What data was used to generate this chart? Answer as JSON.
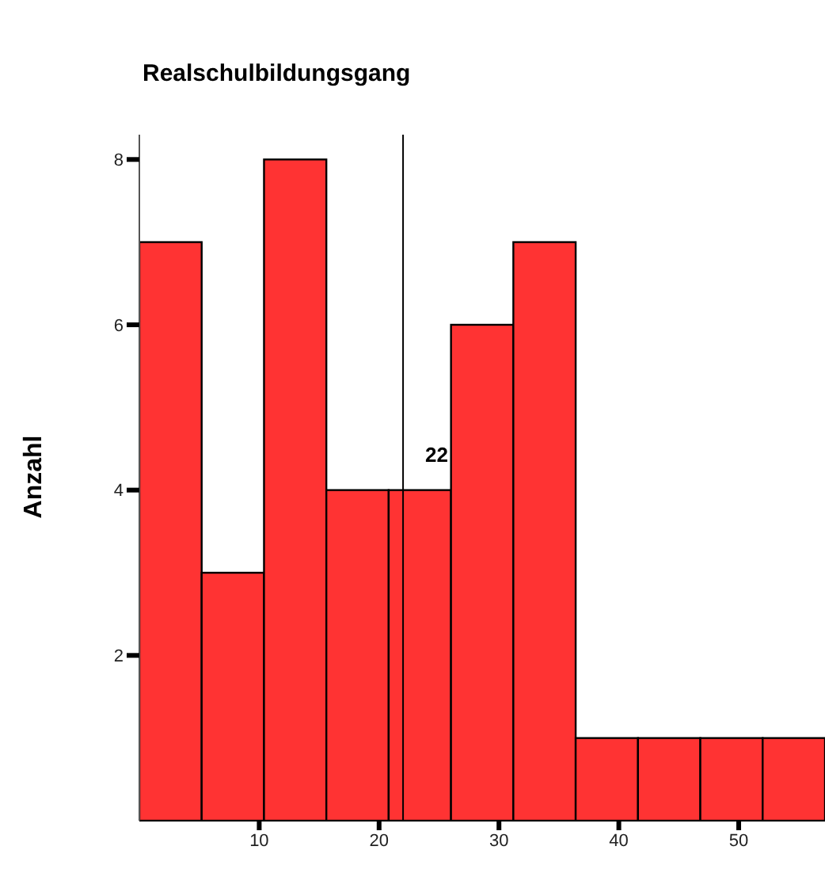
{
  "chart_data": {
    "type": "histogram",
    "title": "Realschulbildungsgang",
    "ylabel": "Anzahl",
    "bins": [
      0,
      5.2,
      10.4,
      15.6,
      20.8,
      26,
      31.2,
      36.4,
      41.6,
      46.8,
      52,
      57.2
    ],
    "values": [
      7,
      3,
      8,
      4,
      4,
      6,
      7,
      1,
      1,
      1,
      1
    ],
    "color": "#ff3333",
    "xlim": [
      0,
      57.2
    ],
    "xticks": [
      10,
      20,
      30,
      40,
      50
    ],
    "ylim": [
      0,
      8.3
    ],
    "yticks": [
      2,
      4,
      6,
      8
    ],
    "ref_lines": [
      {
        "axis": "x",
        "value": 22,
        "label": "22"
      }
    ],
    "grid": false
  }
}
